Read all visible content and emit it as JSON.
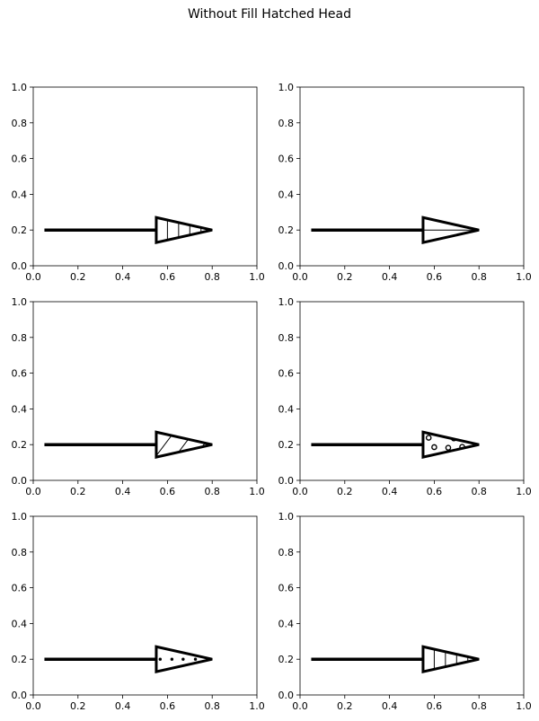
{
  "figure": {
    "title": "Without Fill Hatched Head"
  },
  "chart_data": [
    {
      "type": "line",
      "title": "",
      "xlabel": "",
      "ylabel": "",
      "xlim": [
        0.0,
        1.0
      ],
      "ylim": [
        0.0,
        1.0
      ],
      "x_ticks": [
        "0.0",
        "0.2",
        "0.4",
        "0.6",
        "0.8",
        "1.0"
      ],
      "y_ticks": [
        "0.0",
        "0.2",
        "0.4",
        "0.6",
        "0.8",
        "1.0"
      ],
      "grid": false,
      "arrow": {
        "x_start": 0.05,
        "x_end": 0.8,
        "y": 0.2,
        "head_base_x": 0.55,
        "head_half_width_y": 0.07
      },
      "head_fill": "none",
      "hatch": "vertical-lines"
    },
    {
      "type": "line",
      "title": "",
      "xlabel": "",
      "ylabel": "",
      "xlim": [
        0.0,
        1.0
      ],
      "ylim": [
        0.0,
        1.0
      ],
      "x_ticks": [
        "0.0",
        "0.2",
        "0.4",
        "0.6",
        "0.8",
        "1.0"
      ],
      "y_ticks": [
        "0.0",
        "0.2",
        "0.4",
        "0.6",
        "0.8",
        "1.0"
      ],
      "grid": false,
      "arrow": {
        "x_start": 0.05,
        "x_end": 0.8,
        "y": 0.2,
        "head_base_x": 0.55,
        "head_half_width_y": 0.07
      },
      "head_fill": "none",
      "hatch": "horizontal-lines"
    },
    {
      "type": "line",
      "title": "",
      "xlabel": "",
      "ylabel": "",
      "xlim": [
        0.0,
        1.0
      ],
      "ylim": [
        0.0,
        1.0
      ],
      "x_ticks": [
        "0.0",
        "0.2",
        "0.4",
        "0.6",
        "0.8",
        "1.0"
      ],
      "y_ticks": [
        "0.0",
        "0.2",
        "0.4",
        "0.6",
        "0.8",
        "1.0"
      ],
      "grid": false,
      "arrow": {
        "x_start": 0.05,
        "x_end": 0.8,
        "y": 0.2,
        "head_base_x": 0.55,
        "head_half_width_y": 0.07
      },
      "head_fill": "none",
      "hatch": "diagonal-lines"
    },
    {
      "type": "line",
      "title": "",
      "xlabel": "",
      "ylabel": "",
      "xlim": [
        0.0,
        1.0
      ],
      "ylim": [
        0.0,
        1.0
      ],
      "x_ticks": [
        "0.0",
        "0.2",
        "0.4",
        "0.6",
        "0.8",
        "1.0"
      ],
      "y_ticks": [
        "0.0",
        "0.2",
        "0.4",
        "0.6",
        "0.8",
        "1.0"
      ],
      "grid": false,
      "arrow": {
        "x_start": 0.05,
        "x_end": 0.8,
        "y": 0.2,
        "head_base_x": 0.55,
        "head_half_width_y": 0.07
      },
      "head_fill": "none",
      "hatch": "small-circles"
    },
    {
      "type": "line",
      "title": "",
      "xlabel": "",
      "ylabel": "",
      "xlim": [
        0.0,
        1.0
      ],
      "ylim": [
        0.0,
        1.0
      ],
      "x_ticks": [
        "0.0",
        "0.2",
        "0.4",
        "0.6",
        "0.8",
        "1.0"
      ],
      "y_ticks": [
        "0.0",
        "0.2",
        "0.4",
        "0.6",
        "0.8",
        "1.0"
      ],
      "grid": false,
      "arrow": {
        "x_start": 0.05,
        "x_end": 0.8,
        "y": 0.2,
        "head_base_x": 0.55,
        "head_half_width_y": 0.07
      },
      "head_fill": "none",
      "hatch": "dots"
    },
    {
      "type": "line",
      "title": "",
      "xlabel": "",
      "ylabel": "",
      "xlim": [
        0.0,
        1.0
      ],
      "ylim": [
        0.0,
        1.0
      ],
      "x_ticks": [
        "0.0",
        "0.2",
        "0.4",
        "0.6",
        "0.8",
        "1.0"
      ],
      "y_ticks": [
        "0.0",
        "0.2",
        "0.4",
        "0.6",
        "0.8",
        "1.0"
      ],
      "grid": false,
      "arrow": {
        "x_start": 0.05,
        "x_end": 0.8,
        "y": 0.2,
        "head_base_x": 0.55,
        "head_half_width_y": 0.07
      },
      "head_fill": "none",
      "hatch": "vertical-lines"
    }
  ]
}
